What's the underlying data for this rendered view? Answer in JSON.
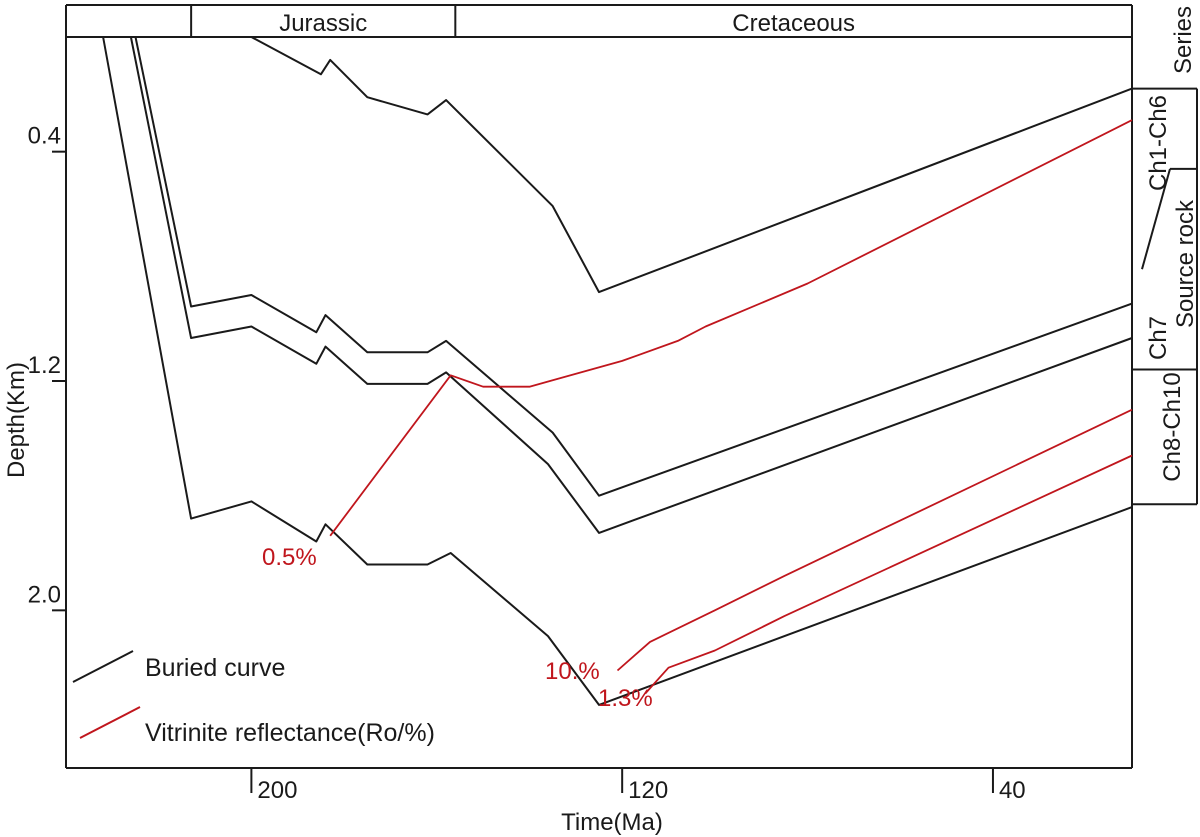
{
  "chart_data": {
    "type": "line",
    "xlabel": "Time(Ma)",
    "ylabel": "Depth(Km)",
    "x_ticks": [
      200,
      120,
      40
    ],
    "y_ticks": [
      "0.4",
      "1.2",
      "2.0"
    ],
    "xlim": [
      240,
      10
    ],
    "ylim": [
      0,
      2.55
    ],
    "periods": [
      {
        "label": "",
        "start": 240,
        "end": 213
      },
      {
        "label": "Jurassic",
        "start": 213,
        "end": 156
      },
      {
        "label": "Cretaceous",
        "start": 156,
        "end": 10
      }
    ],
    "right_column": {
      "series_label": "Series",
      "zones": [
        {
          "label": "Ch1-Ch6",
          "top": 0.18,
          "bottom": 1.16
        },
        {
          "label": "Ch7",
          "top": 0.81,
          "bottom": 1.16
        },
        {
          "label": "Source rock",
          "top": 0.46,
          "bottom": 1.16
        },
        {
          "label": "Ch8-Ch10",
          "top": 1.16,
          "bottom": 1.63
        }
      ]
    },
    "buried_curves": [
      {
        "points": [
          [
            227,
            0
          ],
          [
            213,
            0
          ],
          [
            200,
            0
          ],
          [
            185,
            0.13
          ],
          [
            183,
            0.08
          ],
          [
            175,
            0.21
          ],
          [
            162,
            0.27
          ],
          [
            158,
            0.22
          ],
          [
            135,
            0.59
          ],
          [
            125,
            0.89
          ],
          [
            10,
            0.18
          ]
        ]
      },
      {
        "points": [
          [
            225,
            0
          ],
          [
            213,
            0.94
          ],
          [
            200,
            0.9
          ],
          [
            186,
            1.03
          ],
          [
            184,
            0.97
          ],
          [
            175,
            1.1
          ],
          [
            162,
            1.1
          ],
          [
            158,
            1.06
          ],
          [
            135,
            1.38
          ],
          [
            125,
            1.6
          ],
          [
            10,
            0.93
          ]
        ]
      },
      {
        "points": [
          [
            226,
            0
          ],
          [
            213,
            1.05
          ],
          [
            200,
            1.01
          ],
          [
            186,
            1.14
          ],
          [
            184,
            1.08
          ],
          [
            175,
            1.21
          ],
          [
            162,
            1.21
          ],
          [
            158,
            1.17
          ],
          [
            136,
            1.49
          ],
          [
            125,
            1.73
          ],
          [
            10,
            1.05
          ]
        ]
      },
      {
        "points": [
          [
            232,
            0
          ],
          [
            213,
            1.68
          ],
          [
            200,
            1.62
          ],
          [
            186,
            1.76
          ],
          [
            184,
            1.7
          ],
          [
            175,
            1.84
          ],
          [
            162,
            1.84
          ],
          [
            157,
            1.8
          ],
          [
            136,
            2.09
          ],
          [
            125,
            2.33
          ],
          [
            10,
            1.64
          ]
        ]
      }
    ],
    "vitrinite_curves": [
      {
        "points": [
          [
            183,
            1.74
          ],
          [
            157,
            1.18
          ],
          [
            150,
            1.22
          ],
          [
            140,
            1.22
          ],
          [
            120,
            1.13
          ],
          [
            108,
            1.06
          ],
          [
            102,
            1.01
          ],
          [
            80,
            0.86
          ],
          [
            10,
            0.29
          ]
        ]
      },
      {
        "points": [
          [
            121,
            2.21
          ],
          [
            114,
            2.11
          ],
          [
            100,
            2.0
          ],
          [
            85,
            1.88
          ],
          [
            10,
            1.3
          ]
        ]
      },
      {
        "points": [
          [
            115,
            2.29
          ],
          [
            110,
            2.2
          ],
          [
            100,
            2.14
          ],
          [
            85,
            2.02
          ],
          [
            10,
            1.46
          ]
        ]
      }
    ],
    "annotations": [
      "0.5%",
      "10.%",
      "1.3%"
    ],
    "legend": [
      {
        "label": "Buried curve",
        "color": "#1a1a1a"
      },
      {
        "label": "Vitrinite reflectance(Ro/%)",
        "color": "#c0161d"
      }
    ],
    "colors": {
      "buried": "#1a1a1a",
      "vitrinite": "#c0161d"
    }
  }
}
